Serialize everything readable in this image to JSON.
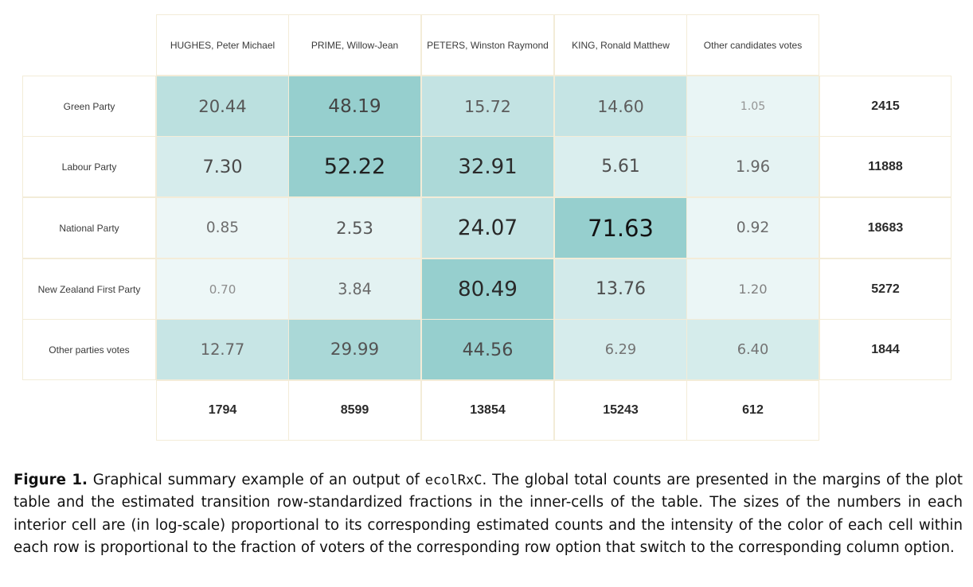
{
  "chart_data": {
    "type": "heatmap",
    "columns": [
      "HUGHES, Peter Michael",
      "PRIME, Willow-Jean",
      "PETERS, Winston Raymond",
      "KING, Ronald Matthew",
      "Other candidates votes"
    ],
    "rows": [
      "Green Party",
      "Labour Party",
      "National Party",
      "New Zealand First Party",
      "Other parties votes"
    ],
    "cells": [
      [
        "20.44",
        "48.19",
        "15.72",
        "14.60",
        "1.05"
      ],
      [
        "7.30",
        "52.22",
        "32.91",
        "5.61",
        "1.96"
      ],
      [
        "0.85",
        "2.53",
        "24.07",
        "71.63",
        "0.92"
      ],
      [
        "0.70",
        "3.84",
        "80.49",
        "13.76",
        "1.20"
      ],
      [
        "12.77",
        "29.99",
        "44.56",
        "6.29",
        "6.40"
      ]
    ],
    "row_totals": [
      "2415",
      "11888",
      "18683",
      "5272",
      "1844"
    ],
    "column_totals": [
      "1794",
      "8599",
      "13854",
      "15243",
      "612"
    ],
    "base_color": "#7fc4c3"
  },
  "caption": {
    "label": "Figure 1.",
    "text_before": "Graphical summary example of an output of",
    "code": "ecolRxC",
    "text_after": ". The global total counts are presented in the margins of the plot table and the estimated transition row-standardized fractions in the inner-cells of the table. The sizes of the numbers in each interior cell are (in log-scale) proportional to its corresponding estimated counts and the intensity of the color of each cell within each row is proportional to the fraction of voters of the corresponding row option that switch to the corresponding column option."
  }
}
